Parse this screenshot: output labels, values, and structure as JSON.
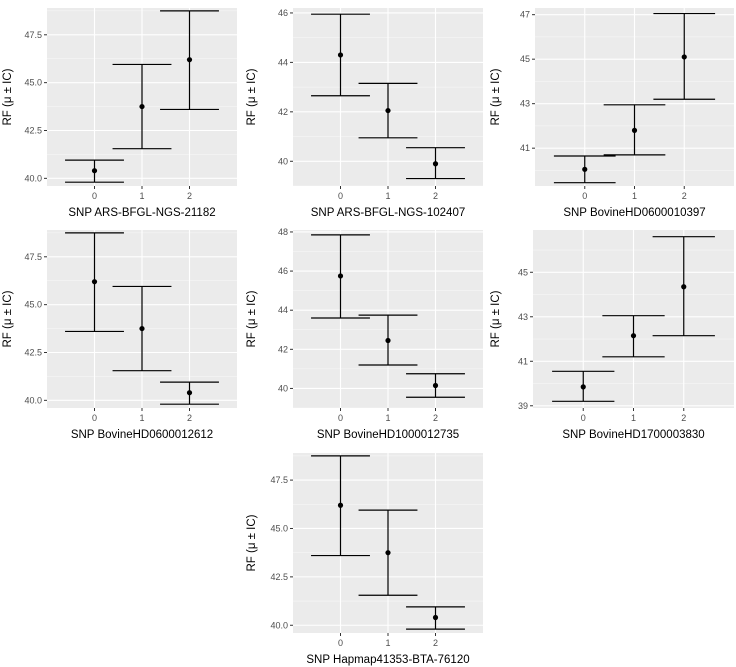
{
  "chart_data": [
    {
      "type": "errorbar",
      "xlabel": "SNP ARS-BFGL-NGS-21182",
      "ylabel": "RF (μ ± IC)",
      "categories": [
        "0",
        "1",
        "2"
      ],
      "ylim": [
        39.6,
        48.9
      ],
      "yticks": [
        40.0,
        42.5,
        45.0,
        47.5
      ],
      "ytick_labels": [
        "40.0",
        "42.5",
        "45.0",
        "47.5"
      ],
      "points": [
        {
          "x": "0",
          "y": 40.4,
          "lower": 39.8,
          "upper": 40.95
        },
        {
          "x": "1",
          "y": 43.75,
          "lower": 41.55,
          "upper": 45.95
        },
        {
          "x": "2",
          "y": 46.2,
          "lower": 43.6,
          "upper": 48.75
        }
      ]
    },
    {
      "type": "errorbar",
      "xlabel": "SNP ARS-BFGL-NGS-102407",
      "ylabel": "RF (μ ± IC)",
      "categories": [
        "0",
        "1",
        "2"
      ],
      "ylim": [
        39.0,
        46.2
      ],
      "yticks": [
        40,
        42,
        44,
        46
      ],
      "ytick_labels": [
        "40",
        "42",
        "44",
        "46"
      ],
      "points": [
        {
          "x": "0",
          "y": 44.3,
          "lower": 42.65,
          "upper": 45.95
        },
        {
          "x": "1",
          "y": 42.05,
          "lower": 40.95,
          "upper": 43.15
        },
        {
          "x": "2",
          "y": 39.9,
          "lower": 39.3,
          "upper": 40.55
        }
      ]
    },
    {
      "type": "errorbar",
      "xlabel": "SNP BovineHD0600010397",
      "ylabel": "RF (μ ± IC)",
      "categories": [
        "0",
        "1",
        "2"
      ],
      "ylim": [
        39.3,
        47.3
      ],
      "yticks": [
        41,
        43,
        45,
        47
      ],
      "ytick_labels": [
        "41",
        "43",
        "45",
        "47"
      ],
      "points": [
        {
          "x": "0",
          "y": 40.05,
          "lower": 39.45,
          "upper": 40.65
        },
        {
          "x": "1",
          "y": 41.8,
          "lower": 40.7,
          "upper": 42.95
        },
        {
          "x": "2",
          "y": 45.1,
          "lower": 43.2,
          "upper": 47.05
        }
      ]
    },
    {
      "type": "errorbar",
      "xlabel": "SNP BovineHD0600012612",
      "ylabel": "RF (μ ± IC)",
      "categories": [
        "0",
        "1",
        "2"
      ],
      "ylim": [
        39.6,
        48.9
      ],
      "yticks": [
        40.0,
        42.5,
        45.0,
        47.5
      ],
      "ytick_labels": [
        "40.0",
        "42.5",
        "45.0",
        "47.5"
      ],
      "points": [
        {
          "x": "0",
          "y": 46.2,
          "lower": 43.6,
          "upper": 48.75
        },
        {
          "x": "1",
          "y": 43.75,
          "lower": 41.55,
          "upper": 45.95
        },
        {
          "x": "2",
          "y": 40.4,
          "lower": 39.8,
          "upper": 40.95
        }
      ]
    },
    {
      "type": "errorbar",
      "xlabel": "SNP BovineHD1000012735",
      "ylabel": "RF (μ ± IC)",
      "categories": [
        "0",
        "1",
        "2"
      ],
      "ylim": [
        39.0,
        48.1
      ],
      "yticks": [
        40,
        42,
        44,
        46,
        48
      ],
      "ytick_labels": [
        "40",
        "42",
        "44",
        "46",
        "48"
      ],
      "points": [
        {
          "x": "0",
          "y": 45.75,
          "lower": 43.6,
          "upper": 47.85
        },
        {
          "x": "1",
          "y": 42.45,
          "lower": 41.2,
          "upper": 43.75
        },
        {
          "x": "2",
          "y": 40.15,
          "lower": 39.55,
          "upper": 40.75
        }
      ]
    },
    {
      "type": "errorbar",
      "xlabel": "SNP BovineHD1700003830",
      "ylabel": "RF (μ ± IC)",
      "categories": [
        "0",
        "1",
        "2"
      ],
      "ylim": [
        38.9,
        46.9
      ],
      "yticks": [
        39,
        41,
        43,
        45
      ],
      "ytick_labels": [
        "39",
        "41",
        "43",
        "45"
      ],
      "points": [
        {
          "x": "0",
          "y": 39.85,
          "lower": 39.2,
          "upper": 40.55
        },
        {
          "x": "1",
          "y": 42.15,
          "lower": 41.2,
          "upper": 43.05
        },
        {
          "x": "2",
          "y": 44.35,
          "lower": 42.15,
          "upper": 46.6
        }
      ]
    },
    {
      "type": "errorbar",
      "xlabel": "SNP Hapmap41353-BTA-76120",
      "ylabel": "RF (μ ± IC)",
      "categories": [
        "0",
        "1",
        "2"
      ],
      "ylim": [
        39.6,
        48.9
      ],
      "yticks": [
        40.0,
        42.5,
        45.0,
        47.5
      ],
      "ytick_labels": [
        "40.0",
        "42.5",
        "45.0",
        "47.5"
      ],
      "points": [
        {
          "x": "0",
          "y": 46.2,
          "lower": 43.6,
          "upper": 48.75
        },
        {
          "x": "1",
          "y": 43.75,
          "lower": 41.55,
          "upper": 45.95
        },
        {
          "x": "2",
          "y": 40.4,
          "lower": 39.8,
          "upper": 40.95
        }
      ]
    }
  ]
}
